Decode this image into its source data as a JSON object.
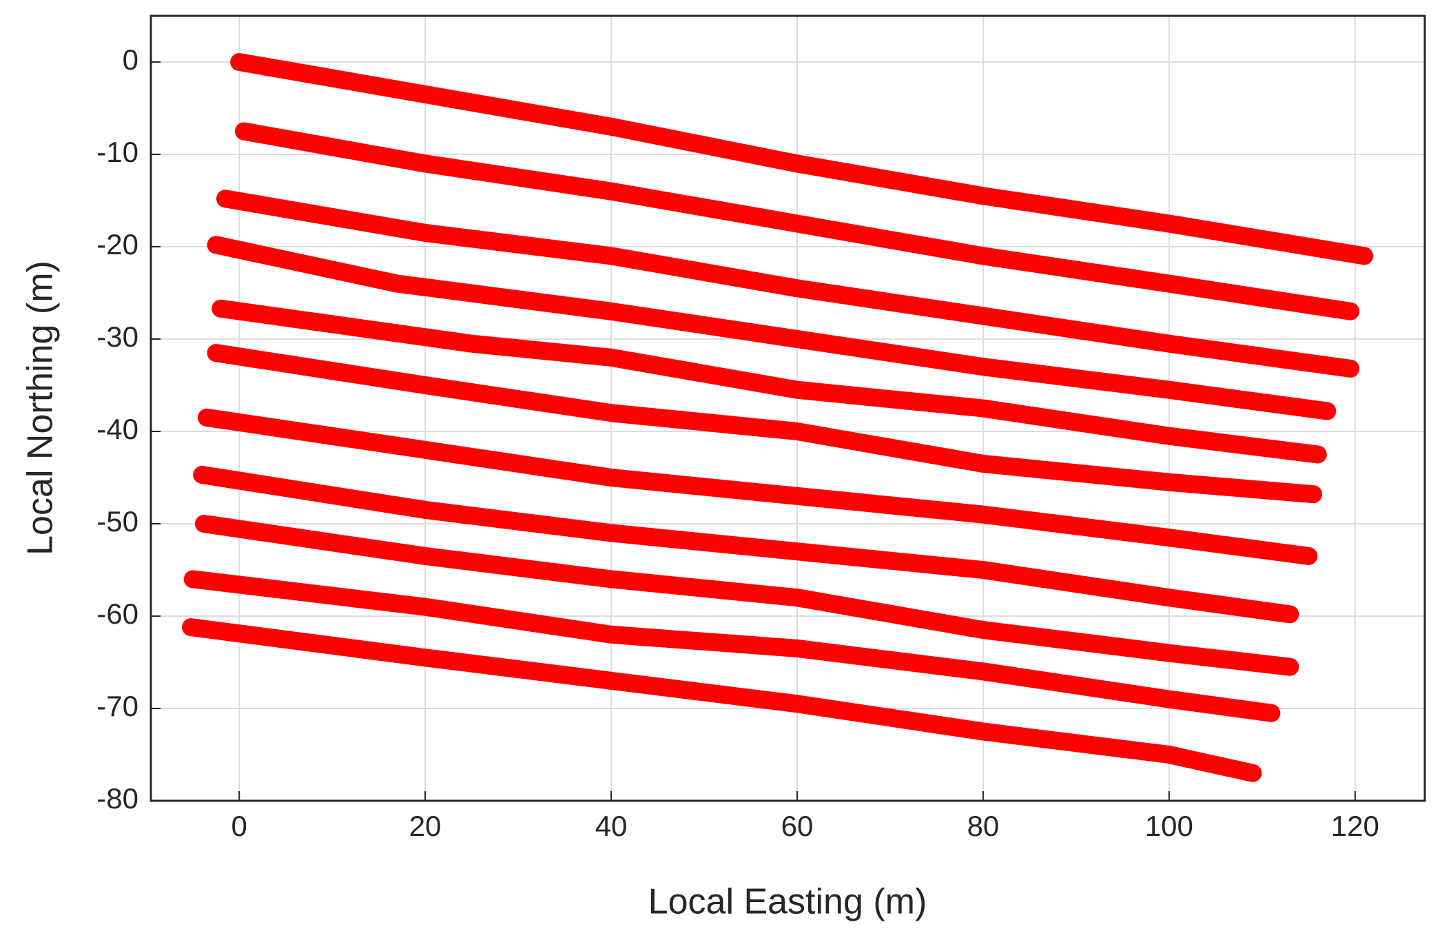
{
  "chart_data": {
    "type": "line",
    "xlabel": "Local Easting (m)",
    "ylabel": "Local Northing (m)",
    "xlim": [
      -9.5,
      127.5
    ],
    "ylim": [
      -80,
      5
    ],
    "xticks": [
      0,
      20,
      40,
      60,
      80,
      100,
      120
    ],
    "yticks": [
      0,
      -10,
      -20,
      -30,
      -40,
      -50,
      -60,
      -70,
      -80
    ],
    "grid": true,
    "series": [
      {
        "color": "#ff0000",
        "x": [
          0,
          20,
          40,
          60,
          80,
          100,
          121
        ],
        "values": [
          0,
          -3.5,
          -7,
          -11,
          -14.5,
          -17.5,
          -21
        ]
      },
      {
        "color": "#ff0000",
        "x": [
          0.5,
          20,
          40,
          60,
          80,
          100,
          119.5
        ],
        "values": [
          -7.5,
          -11,
          -14,
          -17.5,
          -21,
          -24,
          -27
        ]
      },
      {
        "color": "#ff0000",
        "x": [
          -1.5,
          20,
          40,
          60,
          80,
          100,
          119.5
        ],
        "values": [
          -14.8,
          -18.5,
          -21,
          -24.5,
          -27.5,
          -30.5,
          -33.2
        ]
      },
      {
        "color": "#ff0000",
        "x": [
          -2.5,
          17,
          40,
          60,
          80,
          100,
          117
        ],
        "values": [
          -19.8,
          -24,
          -27,
          -30,
          -33,
          -35.5,
          -37.8
        ]
      },
      {
        "color": "#ff0000",
        "x": [
          -2,
          25,
          40,
          60,
          80,
          100,
          116
        ],
        "values": [
          -26.7,
          -30.5,
          -32,
          -35.5,
          -37.5,
          -40.5,
          -42.5
        ]
      },
      {
        "color": "#ff0000",
        "x": [
          -2.5,
          20,
          40,
          60,
          80,
          100,
          115.5
        ],
        "values": [
          -31.5,
          -35,
          -38,
          -40,
          -43.5,
          -45.5,
          -46.8
        ]
      },
      {
        "color": "#ff0000",
        "x": [
          -3.5,
          20,
          40,
          60,
          80,
          100,
          115
        ],
        "values": [
          -38.5,
          -42,
          -45,
          -47,
          -49,
          -51.5,
          -53.5
        ]
      },
      {
        "color": "#ff0000",
        "x": [
          -4,
          20,
          40,
          60,
          80,
          100,
          113
        ],
        "values": [
          -44.7,
          -48.5,
          -51,
          -53,
          -55,
          -58,
          -59.8
        ]
      },
      {
        "color": "#ff0000",
        "x": [
          -3.8,
          20,
          40,
          60,
          80,
          100,
          113
        ],
        "values": [
          -50,
          -53.5,
          -56,
          -58,
          -61.5,
          -64,
          -65.5
        ]
      },
      {
        "color": "#ff0000",
        "x": [
          -5,
          20,
          40,
          60,
          80,
          100,
          111
        ],
        "values": [
          -56,
          -59,
          -62,
          -63.5,
          -66,
          -69,
          -70.5
        ]
      },
      {
        "color": "#ff0000",
        "x": [
          -5.2,
          20,
          40,
          60,
          80,
          100,
          109
        ],
        "values": [
          -61.2,
          -64.5,
          -67,
          -69.5,
          -72.5,
          -75,
          -77
        ]
      }
    ]
  }
}
